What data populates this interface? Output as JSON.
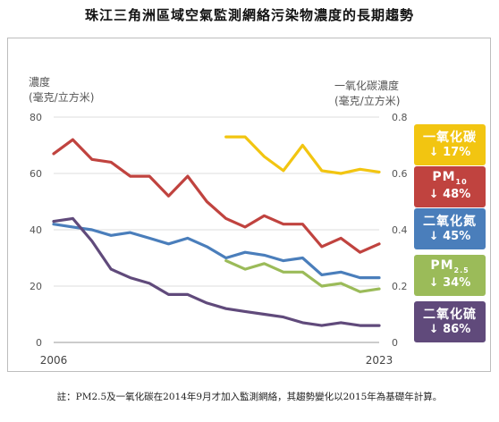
{
  "title": "珠江三角洲區域空氣監測網絡污染物濃度的長期趨勢",
  "footnote": "註：PM2.5及一氧化碳在2014年9月才加入監測網絡，其趨勢變化以2015年為基礎年計算。",
  "colors": {
    "co": "#f2c511",
    "pm10": "#c0433f",
    "no2": "#4a7ebb",
    "pm25": "#9bbb59",
    "so2": "#604a7b"
  },
  "chart_data": {
    "type": "line",
    "xlabel_ticks": [
      "2006",
      "2023"
    ],
    "x": [
      2006,
      2007,
      2008,
      2009,
      2010,
      2011,
      2012,
      2013,
      2014,
      2015,
      2016,
      2017,
      2018,
      2019,
      2020,
      2021,
      2022,
      2023
    ],
    "ylabel_left": "濃度\n(毫克/立方米)",
    "ylabel_right": "一氧化碳濃度\n(毫克/立方米)",
    "ylim_left": [
      0,
      80
    ],
    "ylim_right": [
      0,
      0.8
    ],
    "yticks_left": [
      "0",
      "20",
      "40",
      "60",
      "80"
    ],
    "yticks_right": [
      "0",
      "0.2",
      "0.4",
      "0.6",
      "0.8"
    ],
    "series": [
      {
        "name": "一氧化碳",
        "key": "co",
        "axis": "right",
        "change": "17%",
        "x": [
          2015,
          2016,
          2017,
          2018,
          2019,
          2020,
          2021,
          2022,
          2023
        ],
        "values": [
          0.73,
          0.73,
          0.66,
          0.61,
          0.7,
          0.61,
          0.6,
          0.615,
          0.605
        ]
      },
      {
        "name": "PM10",
        "key": "pm10",
        "axis": "left",
        "change": "48%",
        "x": [
          2006,
          2007,
          2008,
          2009,
          2010,
          2011,
          2012,
          2013,
          2014,
          2015,
          2016,
          2017,
          2018,
          2019,
          2020,
          2021,
          2022,
          2023
        ],
        "values": [
          67,
          72,
          65,
          64,
          59,
          59,
          52,
          59,
          50,
          44,
          41,
          45,
          42,
          42,
          34,
          37,
          32,
          35
        ]
      },
      {
        "name": "二氧化氮",
        "key": "no2",
        "axis": "left",
        "change": "45%",
        "x": [
          2006,
          2007,
          2008,
          2009,
          2010,
          2011,
          2012,
          2013,
          2014,
          2015,
          2016,
          2017,
          2018,
          2019,
          2020,
          2021,
          2022,
          2023
        ],
        "values": [
          42,
          41,
          40,
          38,
          39,
          37,
          35,
          37,
          34,
          30,
          32,
          31,
          29,
          30,
          24,
          25,
          23,
          23
        ]
      },
      {
        "name": "PM2.5",
        "key": "pm25",
        "axis": "left",
        "change": "34%",
        "x": [
          2015,
          2016,
          2017,
          2018,
          2019,
          2020,
          2021,
          2022,
          2023
        ],
        "values": [
          29,
          26,
          28,
          25,
          25,
          20,
          21,
          18,
          19
        ]
      },
      {
        "name": "二氧化硫",
        "key": "so2",
        "axis": "left",
        "change": "86%",
        "x": [
          2006,
          2007,
          2008,
          2009,
          2010,
          2011,
          2012,
          2013,
          2014,
          2015,
          2016,
          2017,
          2018,
          2019,
          2020,
          2021,
          2022,
          2023
        ],
        "values": [
          43,
          44,
          36,
          26,
          23,
          21,
          17,
          17,
          14,
          12,
          11,
          10,
          9,
          7,
          6,
          7,
          6,
          6
        ]
      }
    ]
  },
  "badges": [
    {
      "key": "co",
      "name": "一氧化碳",
      "sub": "",
      "pct": "17%"
    },
    {
      "key": "pm10",
      "name": "PM",
      "sub": "10",
      "pct": "48%"
    },
    {
      "key": "no2",
      "name": "二氧化氮",
      "sub": "",
      "pct": "45%"
    },
    {
      "key": "pm25",
      "name": "PM",
      "sub": "2.5",
      "pct": "34%"
    },
    {
      "key": "so2",
      "name": "二氧化硫",
      "sub": "",
      "pct": "86%"
    }
  ]
}
